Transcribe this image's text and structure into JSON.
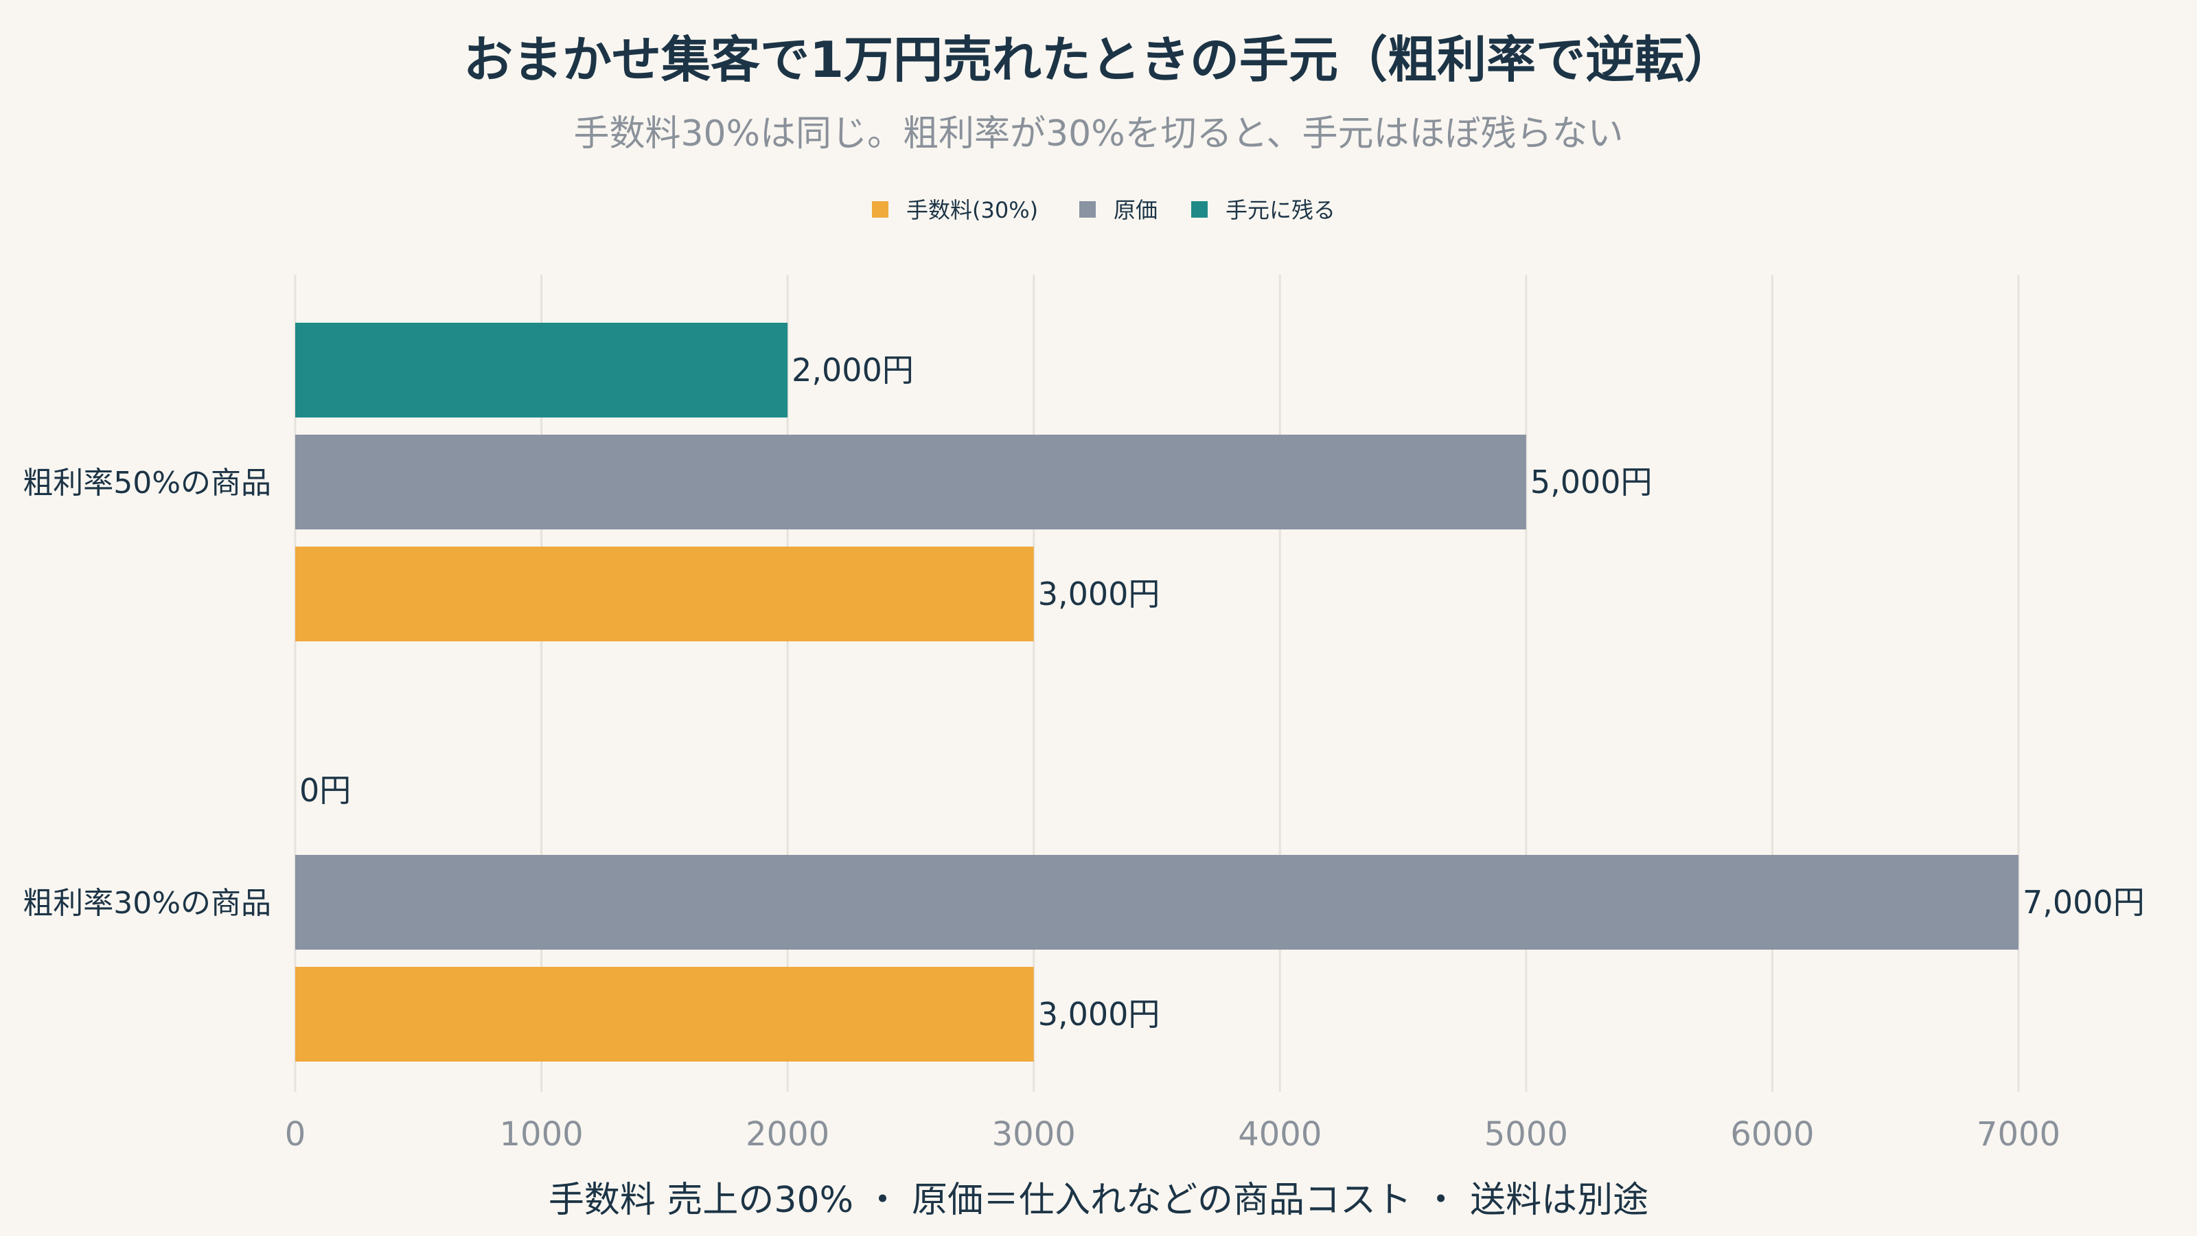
{
  "chart_data": {
    "type": "bar",
    "orientation": "horizontal",
    "title": "おまかせ集客で1万円売れたときの手元（粗利率で逆転）",
    "subtitle": "手数料30%は同じ。粗利率が30%を切ると、手元はほぼ残らない",
    "categories": [
      "粗利率50%の商品",
      "粗利率30%の商品"
    ],
    "series": [
      {
        "name": "手数料(30%)",
        "color": "#f0a93b",
        "values": [
          3000,
          3000
        ],
        "labels": [
          "3,000円",
          "3,000円"
        ]
      },
      {
        "name": "原価",
        "color": "#8a93a2",
        "values": [
          5000,
          7000
        ],
        "labels": [
          "5,000円",
          "7,000円"
        ]
      },
      {
        "name": "手元に残る",
        "color": "#1f8a87",
        "values": [
          2000,
          0
        ],
        "labels": [
          "2,000円",
          "0円"
        ]
      }
    ],
    "xlim": [
      0,
      7000
    ],
    "xticks": [
      "0",
      "1000",
      "2000",
      "3000",
      "4000",
      "5000",
      "6000",
      "7000"
    ],
    "grid": true,
    "legend_position": "top-center",
    "footnote": "手数料 売上の30% ・ 原価＝仕入れなどの商品コスト ・ 送料は別途"
  }
}
